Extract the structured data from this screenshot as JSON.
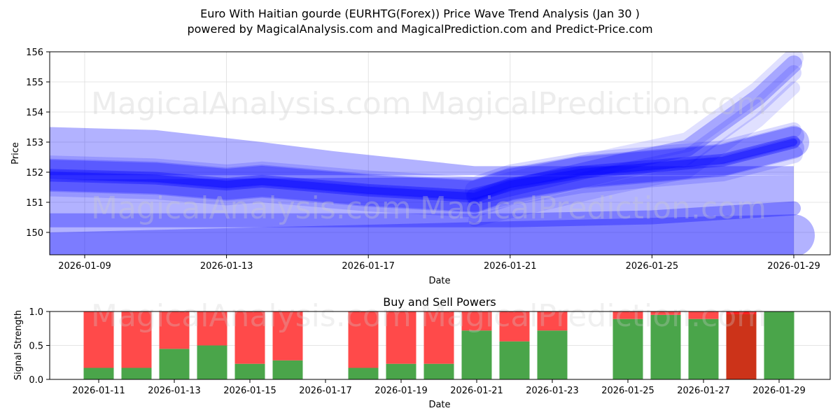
{
  "header": {
    "title": "Euro With Haitian gourde (EURHTG(Forex)) Price Wave Trend Analysis (Jan 30 )",
    "subtitle": "powered by MagicalAnalysis.com and MagicalPrediction.com and Predict-Price.com"
  },
  "watermarks": [
    "MagicalAnalysis.com",
    "MagicalPrediction.com"
  ],
  "colors": {
    "wave": "#0000ff",
    "buy": "#4aa54a",
    "sell": "#ff4a4a",
    "strong_sell": "#cc3319"
  },
  "chart_data": [
    {
      "type": "area",
      "title": "Price Wave Trend",
      "xlabel": "Date",
      "ylabel": "Price",
      "ylim": [
        149.3,
        156
      ],
      "yticks": [
        150,
        151,
        152,
        153,
        154,
        155,
        156
      ],
      "xticks": [
        "2026-01-09",
        "2026-01-13",
        "2026-01-17",
        "2026-01-21",
        "2026-01-25",
        "2026-01-29"
      ],
      "grid": true,
      "series": [
        {
          "name": "wide band upper",
          "x": [
            "2026-01-08",
            "2026-01-11",
            "2026-01-14",
            "2026-01-16",
            "2026-01-20",
            "2026-01-29"
          ],
          "values": [
            153.5,
            153.4,
            153.0,
            152.7,
            152.2,
            152.2
          ]
        },
        {
          "name": "main wave",
          "x": [
            "2026-01-08",
            "2026-01-11",
            "2026-01-13",
            "2026-01-14",
            "2026-01-17",
            "2026-01-20",
            "2026-01-21",
            "2026-01-23",
            "2026-01-25",
            "2026-01-27",
            "2026-01-29"
          ],
          "values": [
            151.9,
            151.8,
            151.6,
            151.7,
            151.4,
            151.2,
            151.6,
            152.0,
            152.2,
            152.4,
            153.0
          ]
        },
        {
          "name": "upper projection",
          "x": [
            "2026-01-20",
            "2026-01-24",
            "2026-01-26",
            "2026-01-28",
            "2026-01-29"
          ],
          "values": [
            151.2,
            152.3,
            152.8,
            154.5,
            155.6
          ]
        },
        {
          "name": "lower band",
          "x": [
            "2026-01-08",
            "2026-01-13",
            "2026-01-17",
            "2026-01-21",
            "2026-01-25",
            "2026-01-29"
          ],
          "values": [
            150.4,
            150.4,
            150.4,
            150.4,
            150.5,
            150.8
          ]
        },
        {
          "name": "floor band",
          "x": [
            "2026-01-08",
            "2026-01-29"
          ],
          "values": [
            149.3,
            149.9
          ]
        }
      ]
    },
    {
      "type": "bar",
      "title": "Buy and Sell Powers",
      "xlabel": "Date",
      "ylabel": "Signal Strength",
      "ylim": [
        0,
        1.0
      ],
      "yticks": [
        "0.0",
        "0.5",
        "1.0"
      ],
      "xticks": [
        "2026-01-11",
        "2026-01-13",
        "2026-01-15",
        "2026-01-17",
        "2026-01-19",
        "2026-01-21",
        "2026-01-23",
        "2026-01-25",
        "2026-01-27",
        "2026-01-29"
      ],
      "categories": [
        "2026-01-11",
        "2026-01-12",
        "2026-01-13",
        "2026-01-14",
        "2026-01-15",
        "2026-01-16",
        "2026-01-18",
        "2026-01-19",
        "2026-01-20",
        "2026-01-21",
        "2026-01-22",
        "2026-01-23",
        "2026-01-25",
        "2026-01-26",
        "2026-01-27",
        "2026-01-28",
        "2026-01-29"
      ],
      "series": [
        {
          "name": "Buy",
          "values": [
            0.17,
            0.17,
            0.45,
            0.5,
            0.23,
            0.28,
            0.17,
            0.23,
            0.23,
            0.72,
            0.56,
            0.72,
            0.89,
            0.95,
            0.89,
            0.0,
            1.0
          ]
        },
        {
          "name": "Sell",
          "values": [
            0.83,
            0.83,
            0.55,
            0.5,
            0.77,
            0.72,
            0.83,
            0.77,
            0.77,
            0.28,
            0.44,
            0.28,
            0.11,
            0.05,
            0.11,
            1.0,
            0.0
          ]
        }
      ],
      "strong_sell_dates": [
        "2026-01-28"
      ]
    }
  ]
}
